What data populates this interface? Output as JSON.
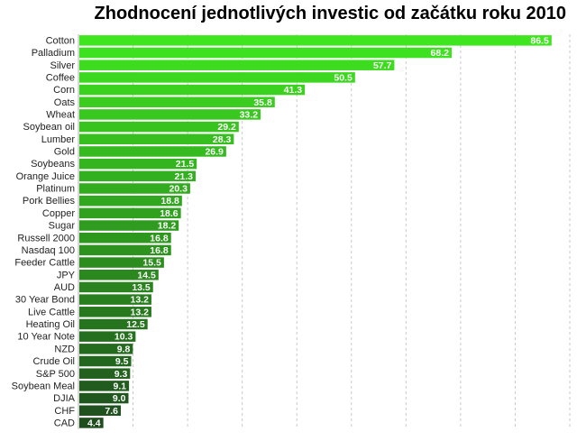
{
  "chart_data": {
    "type": "bar",
    "orientation": "horizontal",
    "title": "Zhodnocení jednotlivých investic od začátku roku 2010",
    "xlabel": "",
    "ylabel": "",
    "xlim": [
      0,
      90
    ],
    "grid": "vertical dashed",
    "categories": [
      "Cotton",
      "Palladium",
      "Silver",
      "Coffee",
      "Corn",
      "Oats",
      "Wheat",
      "Soybean oil",
      "Lumber",
      "Gold",
      "Soybeans",
      "Orange Juice",
      "Platinum",
      "Pork Bellies",
      "Copper",
      "Sugar",
      "Russell 2000",
      "Nasdaq 100",
      "Feeder Cattle",
      "JPY",
      "AUD",
      "30 Year Bond",
      "Live Cattle",
      "Heating Oil",
      "10 Year Note",
      "NZD",
      "Crude Oil",
      "S&P 500",
      "Soybean Meal",
      "DJIA",
      "CHF",
      "CAD"
    ],
    "values": [
      86.5,
      68.2,
      57.7,
      50.5,
      41.3,
      35.8,
      33.2,
      29.2,
      28.3,
      26.9,
      21.5,
      21.3,
      20.3,
      18.8,
      18.6,
      18.2,
      16.8,
      16.8,
      15.5,
      14.5,
      13.5,
      13.2,
      13.2,
      12.5,
      10.3,
      9.8,
      9.5,
      9.3,
      9.1,
      9.0,
      7.6,
      4.4
    ],
    "value_labels": [
      "86.5",
      "68.2",
      "57.7",
      "50.5",
      "41.3",
      "35.8",
      "33.2",
      "29.2",
      "28.3",
      "26.9",
      "21.5",
      "21.3",
      "20.3",
      "18.8",
      "18.6",
      "18.2",
      "16.8",
      "16.8",
      "15.5",
      "14.5",
      "13.5",
      "13.2",
      "13.2",
      "12.5",
      "10.3",
      "9.8",
      "9.5",
      "9.3",
      "9.1",
      "9.0",
      "7.6",
      "4.4"
    ],
    "colors": {
      "top": "#3fe61f",
      "bottom": "#1e4d1e",
      "grid": "#c8c8c8"
    }
  }
}
